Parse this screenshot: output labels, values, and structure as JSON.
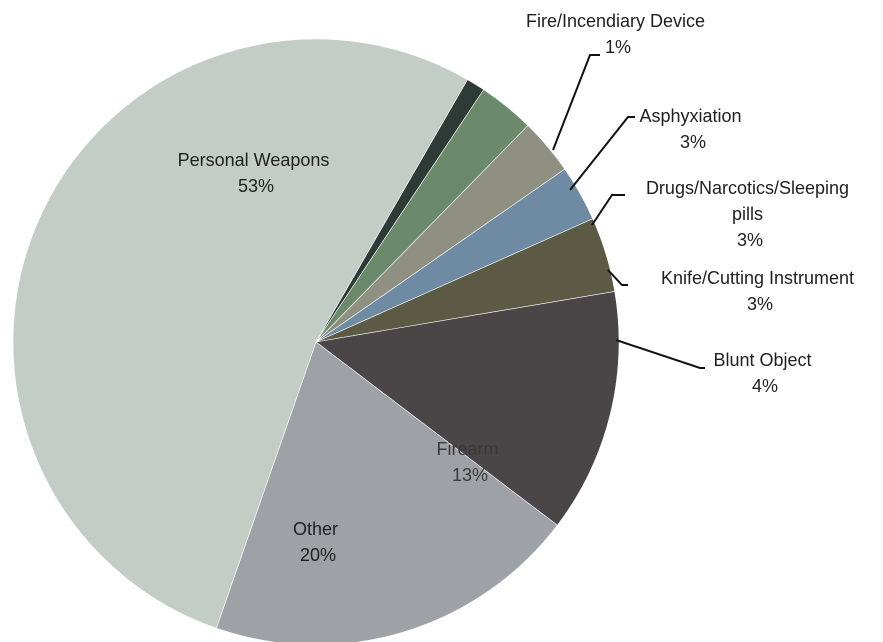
{
  "chart_data": {
    "type": "pie",
    "title": "",
    "start_angle_deg": 30,
    "direction": "clockwise",
    "slices": [
      {
        "label": "Fire/Incendiary Device",
        "value": 1,
        "pct_label": "1%",
        "color": "#2e3a35"
      },
      {
        "label": "Asphyxiation",
        "value": 3,
        "pct_label": "3%",
        "color": "#6b8a6b"
      },
      {
        "label": "Drugs/Narcotics/Sleeping pills",
        "value": 3,
        "pct_label": "3%",
        "color": "#8f8f82"
      },
      {
        "label": "Knife/Cutting Instrument",
        "value": 3,
        "pct_label": "3%",
        "color": "#6f8aa3"
      },
      {
        "label": "Blunt Object",
        "value": 4,
        "pct_label": "4%",
        "color": "#5c5a44"
      },
      {
        "label": "Firearm",
        "value": 13,
        "pct_label": "13%",
        "color": "#4a4648"
      },
      {
        "label": "Other",
        "value": 20,
        "pct_label": "20%",
        "color": "#9ea1a6"
      },
      {
        "label": "Personal Weapons",
        "value": 53,
        "pct_label": "53%",
        "color": "#c3cdc6"
      }
    ]
  }
}
